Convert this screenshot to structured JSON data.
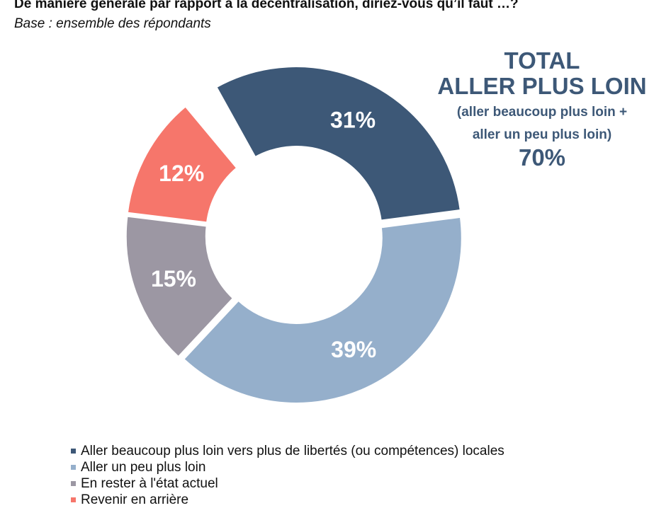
{
  "title": "De manière générale par rapport à la décentralisation, diriez-vous qu’il faut …?",
  "subtitle": "Base : ensemble des répondants",
  "total_box": {
    "line1": "TOTAL",
    "line2": "ALLER PLUS LOIN",
    "line3": "(aller beaucoup plus loin +",
    "line4": "aller un peu plus loin)",
    "value": "70%"
  },
  "chart_data": {
    "type": "pie",
    "variant": "donut",
    "title": "De manière générale par rapport à la décentralisation, diriez-vous qu’il faut …?",
    "categories": [
      "Aller beaucoup plus loin vers plus de libertés (ou compétences) locales",
      "Aller un peu plus loin",
      "En rester à l'état actuel",
      "Revenir en arrière"
    ],
    "values": [
      31,
      39,
      15,
      12
    ],
    "labels": [
      "31%",
      "39%",
      "15%",
      "12%"
    ],
    "colors": [
      "#3d5877",
      "#95afcb",
      "#9c97a3",
      "#f6766b"
    ],
    "legend": "bottom-left"
  }
}
